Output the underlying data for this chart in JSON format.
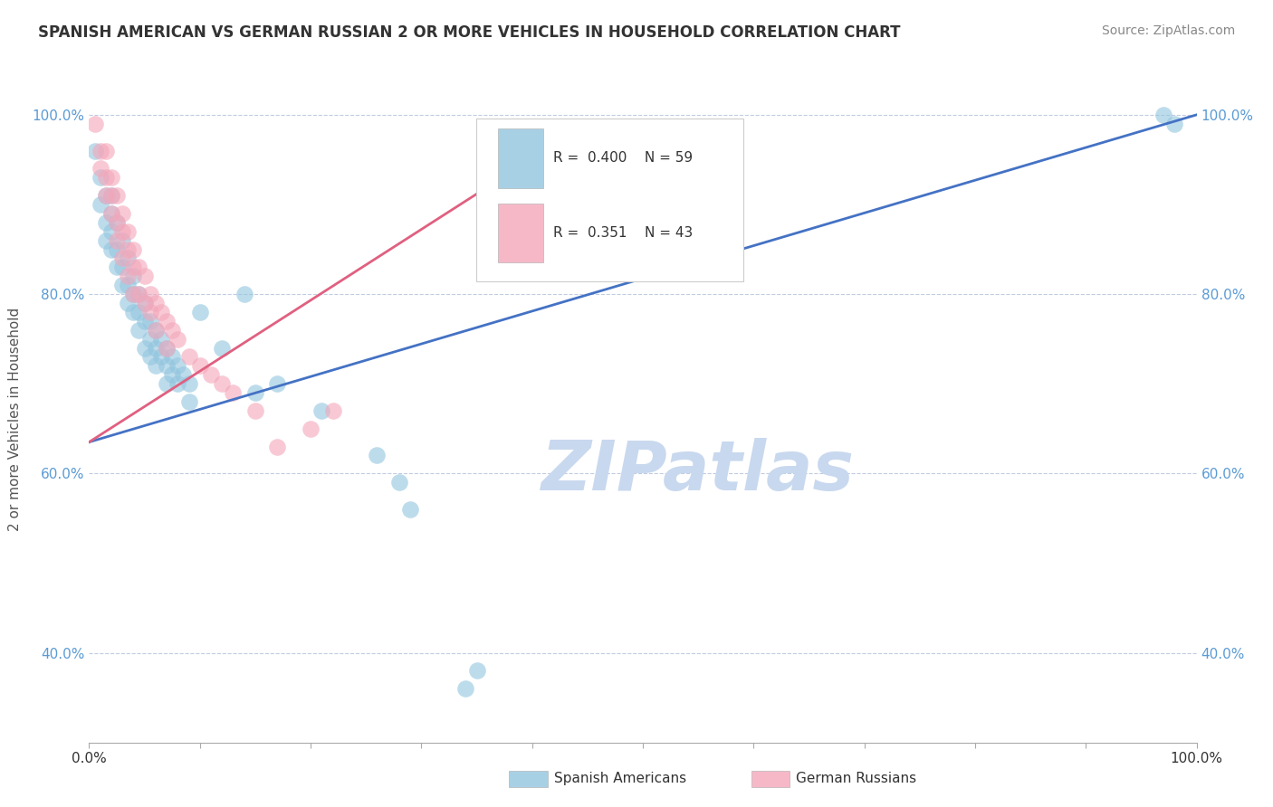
{
  "title": "SPANISH AMERICAN VS GERMAN RUSSIAN 2 OR MORE VEHICLES IN HOUSEHOLD CORRELATION CHART",
  "source": "Source: ZipAtlas.com",
  "ylabel": "2 or more Vehicles in Household",
  "legend_label1": "Spanish Americans",
  "legend_label2": "German Russians",
  "blue_color": "#92c5de",
  "pink_color": "#f4a6ba",
  "blue_line_color": "#4472c4",
  "pink_line_color": "#e06080",
  "watermark": "ZIPatlas",
  "watermark_color": "#c8d8ee",
  "background_color": "#ffffff",
  "grid_color": "#c0cce0",
  "ytick_color": "#5b9bd5",
  "xlim": [
    0.0,
    1.0
  ],
  "ylim": [
    0.3,
    1.02
  ],
  "xtick_positions": [
    0.0,
    0.1,
    0.2,
    0.3,
    0.4,
    0.5,
    0.6,
    0.7,
    0.8,
    0.9,
    1.0
  ],
  "xtick_labels_sparse": {
    "0.0": "0.0%",
    "1.0": "100.0%"
  },
  "ytick_positions": [
    0.4,
    0.6,
    0.8,
    1.0
  ],
  "ytick_labels": [
    "40.0%",
    "60.0%",
    "80.0%",
    "100.0%"
  ],
  "blue_trendline": [
    [
      0.0,
      0.635
    ],
    [
      1.0,
      1.0
    ]
  ],
  "pink_trendline": [
    [
      0.0,
      0.635
    ],
    [
      0.43,
      0.975
    ]
  ],
  "blue_scatter": [
    [
      0.005,
      0.96
    ],
    [
      0.01,
      0.93
    ],
    [
      0.01,
      0.9
    ],
    [
      0.015,
      0.91
    ],
    [
      0.015,
      0.88
    ],
    [
      0.015,
      0.86
    ],
    [
      0.02,
      0.91
    ],
    [
      0.02,
      0.89
    ],
    [
      0.02,
      0.87
    ],
    [
      0.02,
      0.85
    ],
    [
      0.025,
      0.88
    ],
    [
      0.025,
      0.85
    ],
    [
      0.025,
      0.83
    ],
    [
      0.03,
      0.86
    ],
    [
      0.03,
      0.83
    ],
    [
      0.03,
      0.81
    ],
    [
      0.035,
      0.84
    ],
    [
      0.035,
      0.81
    ],
    [
      0.035,
      0.79
    ],
    [
      0.04,
      0.82
    ],
    [
      0.04,
      0.8
    ],
    [
      0.04,
      0.78
    ],
    [
      0.045,
      0.8
    ],
    [
      0.045,
      0.78
    ],
    [
      0.045,
      0.76
    ],
    [
      0.05,
      0.79
    ],
    [
      0.05,
      0.77
    ],
    [
      0.05,
      0.74
    ],
    [
      0.055,
      0.77
    ],
    [
      0.055,
      0.75
    ],
    [
      0.055,
      0.73
    ],
    [
      0.06,
      0.76
    ],
    [
      0.06,
      0.74
    ],
    [
      0.06,
      0.72
    ],
    [
      0.065,
      0.75
    ],
    [
      0.065,
      0.73
    ],
    [
      0.07,
      0.74
    ],
    [
      0.07,
      0.72
    ],
    [
      0.07,
      0.7
    ],
    [
      0.075,
      0.73
    ],
    [
      0.075,
      0.71
    ],
    [
      0.08,
      0.72
    ],
    [
      0.08,
      0.7
    ],
    [
      0.085,
      0.71
    ],
    [
      0.09,
      0.7
    ],
    [
      0.09,
      0.68
    ],
    [
      0.1,
      0.78
    ],
    [
      0.12,
      0.74
    ],
    [
      0.14,
      0.8
    ],
    [
      0.15,
      0.69
    ],
    [
      0.17,
      0.7
    ],
    [
      0.21,
      0.67
    ],
    [
      0.26,
      0.62
    ],
    [
      0.28,
      0.59
    ],
    [
      0.29,
      0.56
    ],
    [
      0.34,
      0.36
    ],
    [
      0.35,
      0.38
    ],
    [
      0.97,
      1.0
    ],
    [
      0.98,
      0.99
    ]
  ],
  "pink_scatter": [
    [
      0.005,
      0.99
    ],
    [
      0.01,
      0.96
    ],
    [
      0.01,
      0.94
    ],
    [
      0.015,
      0.96
    ],
    [
      0.015,
      0.93
    ],
    [
      0.015,
      0.91
    ],
    [
      0.02,
      0.93
    ],
    [
      0.02,
      0.91
    ],
    [
      0.02,
      0.89
    ],
    [
      0.025,
      0.91
    ],
    [
      0.025,
      0.88
    ],
    [
      0.025,
      0.86
    ],
    [
      0.03,
      0.89
    ],
    [
      0.03,
      0.87
    ],
    [
      0.03,
      0.84
    ],
    [
      0.035,
      0.87
    ],
    [
      0.035,
      0.85
    ],
    [
      0.035,
      0.82
    ],
    [
      0.04,
      0.85
    ],
    [
      0.04,
      0.83
    ],
    [
      0.04,
      0.8
    ],
    [
      0.045,
      0.83
    ],
    [
      0.045,
      0.8
    ],
    [
      0.05,
      0.82
    ],
    [
      0.05,
      0.79
    ],
    [
      0.055,
      0.8
    ],
    [
      0.055,
      0.78
    ],
    [
      0.06,
      0.79
    ],
    [
      0.06,
      0.76
    ],
    [
      0.065,
      0.78
    ],
    [
      0.07,
      0.77
    ],
    [
      0.07,
      0.74
    ],
    [
      0.075,
      0.76
    ],
    [
      0.08,
      0.75
    ],
    [
      0.09,
      0.73
    ],
    [
      0.1,
      0.72
    ],
    [
      0.11,
      0.71
    ],
    [
      0.12,
      0.7
    ],
    [
      0.13,
      0.69
    ],
    [
      0.15,
      0.67
    ],
    [
      0.17,
      0.63
    ],
    [
      0.2,
      0.65
    ],
    [
      0.22,
      0.67
    ]
  ]
}
